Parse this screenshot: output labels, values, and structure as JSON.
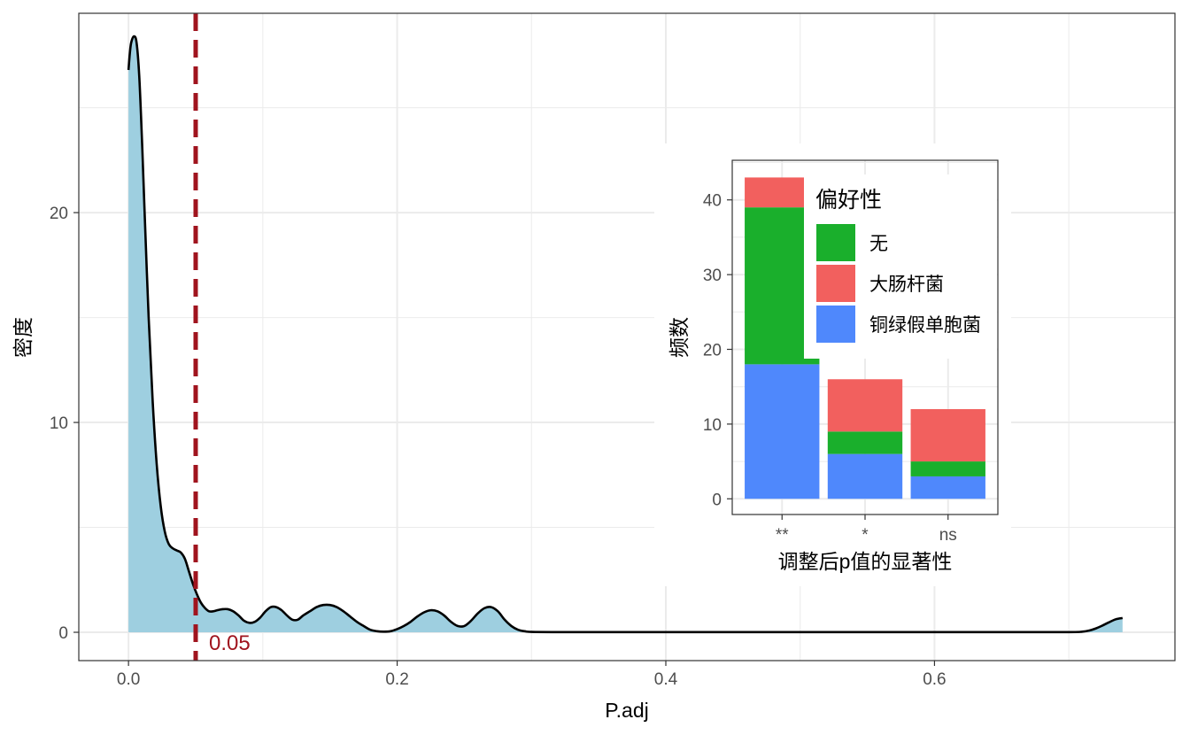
{
  "colors": {
    "density_fill": "#9ecfe0",
    "density_line": "#000000",
    "threshold_line": "#a0141e",
    "grid": "#ebebeb",
    "panel_border": "#333333",
    "series_none": "#1aaf2c",
    "series_ecoli": "#f2605e",
    "series_pseudomonas": "#4f88fc"
  },
  "chart_data": [
    {
      "type": "area",
      "xlabel": "P.adj",
      "ylabel": "密度",
      "xlim": [
        -0.037,
        0.779
      ],
      "ylim": [
        -1.35,
        29.5
      ],
      "x_ticks": [
        "0.0",
        "0.2",
        "0.4",
        "0.6"
      ],
      "x_tick_values": [
        0.0,
        0.2,
        0.4,
        0.6
      ],
      "y_ticks": [
        "0",
        "10",
        "20"
      ],
      "y_tick_values": [
        0,
        10,
        20
      ],
      "grid": true,
      "x": [
        0.0,
        0.001,
        0.002,
        0.004,
        0.006,
        0.008,
        0.01,
        0.012,
        0.015,
        0.018,
        0.021,
        0.024,
        0.027,
        0.03,
        0.033,
        0.036,
        0.039,
        0.042,
        0.045,
        0.048,
        0.051,
        0.054,
        0.057,
        0.06,
        0.063,
        0.066,
        0.07,
        0.074,
        0.078,
        0.082,
        0.086,
        0.09,
        0.094,
        0.098,
        0.102,
        0.106,
        0.11,
        0.114,
        0.118,
        0.122,
        0.126,
        0.13,
        0.135,
        0.14,
        0.145,
        0.15,
        0.155,
        0.16,
        0.165,
        0.17,
        0.175,
        0.18,
        0.185,
        0.19,
        0.195,
        0.2,
        0.205,
        0.21,
        0.215,
        0.22,
        0.225,
        0.23,
        0.235,
        0.24,
        0.245,
        0.25,
        0.255,
        0.26,
        0.265,
        0.27,
        0.275,
        0.28,
        0.285,
        0.29,
        0.295,
        0.3,
        0.32,
        0.35,
        0.4,
        0.45,
        0.5,
        0.55,
        0.6,
        0.65,
        0.7,
        0.71,
        0.715,
        0.72,
        0.725,
        0.73,
        0.735,
        0.74
      ],
      "values": [
        26.8,
        27.6,
        28.1,
        28.4,
        28.1,
        26.5,
        23.5,
        20.0,
        15.0,
        11.0,
        8.0,
        6.0,
        4.8,
        4.2,
        4.0,
        3.9,
        3.8,
        3.5,
        2.9,
        2.3,
        1.8,
        1.4,
        1.15,
        1.0,
        1.0,
        1.05,
        1.1,
        1.1,
        1.0,
        0.8,
        0.55,
        0.45,
        0.5,
        0.7,
        1.0,
        1.2,
        1.2,
        1.05,
        0.8,
        0.6,
        0.6,
        0.8,
        1.0,
        1.2,
        1.3,
        1.3,
        1.2,
        1.0,
        0.75,
        0.5,
        0.3,
        0.12,
        0.05,
        0.03,
        0.05,
        0.15,
        0.3,
        0.5,
        0.75,
        0.95,
        1.05,
        1.0,
        0.8,
        0.5,
        0.3,
        0.3,
        0.55,
        0.9,
        1.15,
        1.2,
        1.0,
        0.6,
        0.3,
        0.12,
        0.05,
        0.02,
        0.01,
        0.01,
        0.01,
        0.01,
        0.01,
        0.01,
        0.01,
        0.01,
        0.01,
        0.03,
        0.08,
        0.18,
        0.32,
        0.48,
        0.62,
        0.68
      ],
      "annotations": [
        {
          "label": "0.05",
          "x": 0.05,
          "style": "dashed vertical line"
        }
      ]
    },
    {
      "type": "bar",
      "stacked": true,
      "xlabel": "调整后p值的显著性",
      "ylabel": "频数",
      "categories": [
        "**",
        "*",
        "ns"
      ],
      "ylim": [
        -2.1,
        45.3
      ],
      "y_ticks": [
        "0",
        "10",
        "20",
        "30",
        "40"
      ],
      "y_tick_values": [
        0,
        10,
        20,
        30,
        40
      ],
      "grid": true,
      "legend_title": "偏好性",
      "legend_position": "top-right",
      "series": [
        {
          "name": "铜绿假单胞菌",
          "values": [
            18,
            6,
            3
          ]
        },
        {
          "name": "无",
          "values": [
            21,
            3,
            2
          ]
        },
        {
          "name": "大肠杆菌",
          "values": [
            4,
            7,
            7
          ]
        }
      ],
      "legend_order": [
        "无",
        "大肠杆菌",
        "铜绿假单胞菌"
      ]
    }
  ]
}
